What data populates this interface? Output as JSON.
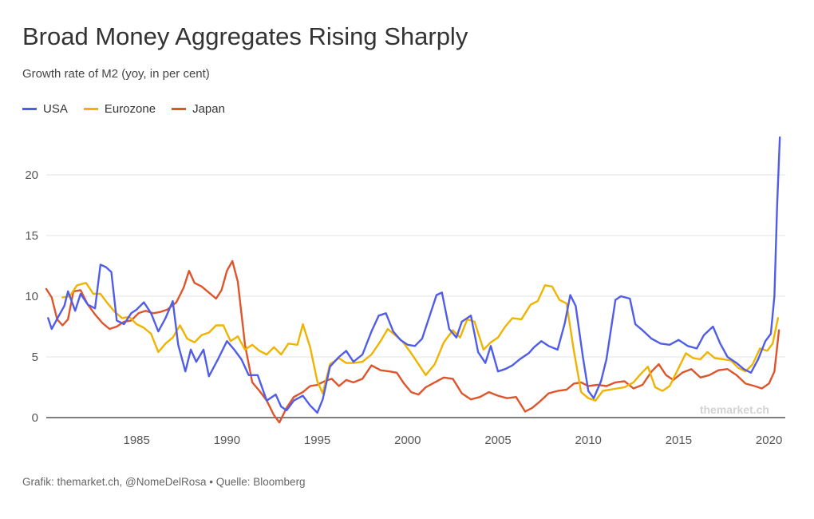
{
  "title": "Broad Money Aggregates Rising Sharply",
  "subtitle": "Growth rate of M2 (yoy, in per cent)",
  "source": "Grafik: themarket.ch, @NomeDelRosa • Quelle: Bloomberg",
  "watermark": "themarket.ch",
  "colors": {
    "USA": "#4f5de8",
    "Eurozone": "#f0b400",
    "Japan": "#e0542b"
  },
  "chart_data": {
    "type": "line",
    "title": "Broad Money Aggregates Rising Sharply",
    "subtitle": "Growth rate of M2 (yoy, in per cent)",
    "xlabel": "",
    "ylabel": "",
    "xlim": [
      1980,
      2020.9
    ],
    "ylim": [
      0,
      23
    ],
    "xticks": [
      1985,
      1990,
      1995,
      2000,
      2005,
      2010,
      2015,
      2020
    ],
    "yticks": [
      0,
      5,
      10,
      15,
      20
    ],
    "grid": true,
    "legend": "top-left",
    "series": [
      {
        "name": "USA",
        "color": "#4f5de8",
        "points": [
          [
            1980.1,
            8.2
          ],
          [
            1980.3,
            7.3
          ],
          [
            1980.7,
            8.4
          ],
          [
            1981.0,
            9.2
          ],
          [
            1981.2,
            10.4
          ],
          [
            1981.6,
            8.8
          ],
          [
            1981.9,
            10.2
          ],
          [
            1982.3,
            9.3
          ],
          [
            1982.7,
            9.0
          ],
          [
            1983.0,
            12.6
          ],
          [
            1983.3,
            12.4
          ],
          [
            1983.6,
            12.0
          ],
          [
            1983.9,
            8.0
          ],
          [
            1984.3,
            7.7
          ],
          [
            1984.7,
            8.6
          ],
          [
            1985.0,
            8.9
          ],
          [
            1985.4,
            9.5
          ],
          [
            1985.8,
            8.6
          ],
          [
            1986.2,
            7.1
          ],
          [
            1986.6,
            8.2
          ],
          [
            1987.0,
            9.6
          ],
          [
            1987.3,
            6.0
          ],
          [
            1987.7,
            3.8
          ],
          [
            1988.0,
            5.6
          ],
          [
            1988.3,
            4.6
          ],
          [
            1988.7,
            5.6
          ],
          [
            1989.0,
            3.4
          ],
          [
            1989.5,
            4.8
          ],
          [
            1990.0,
            6.3
          ],
          [
            1990.4,
            5.6
          ],
          [
            1990.8,
            4.8
          ],
          [
            1991.2,
            3.5
          ],
          [
            1991.7,
            3.5
          ],
          [
            1992.2,
            1.4
          ],
          [
            1992.7,
            1.9
          ],
          [
            1993.0,
            0.9
          ],
          [
            1993.3,
            0.6
          ],
          [
            1993.7,
            1.4
          ],
          [
            1994.2,
            1.8
          ],
          [
            1994.6,
            1.0
          ],
          [
            1995.0,
            0.4
          ],
          [
            1995.3,
            1.5
          ],
          [
            1995.7,
            4.2
          ],
          [
            1996.2,
            5.0
          ],
          [
            1996.6,
            5.5
          ],
          [
            1997.0,
            4.6
          ],
          [
            1997.5,
            5.2
          ],
          [
            1998.0,
            7.1
          ],
          [
            1998.4,
            8.4
          ],
          [
            1998.8,
            8.6
          ],
          [
            1999.2,
            7.1
          ],
          [
            1999.6,
            6.4
          ],
          [
            2000.0,
            6.0
          ],
          [
            2000.4,
            5.9
          ],
          [
            2000.8,
            6.5
          ],
          [
            2001.2,
            8.3
          ],
          [
            2001.6,
            10.1
          ],
          [
            2001.9,
            10.3
          ],
          [
            2002.3,
            7.3
          ],
          [
            2002.7,
            6.6
          ],
          [
            2003.0,
            7.9
          ],
          [
            2003.5,
            8.4
          ],
          [
            2003.9,
            5.4
          ],
          [
            2004.3,
            4.5
          ],
          [
            2004.6,
            5.9
          ],
          [
            2005.0,
            3.8
          ],
          [
            2005.4,
            4.0
          ],
          [
            2005.8,
            4.3
          ],
          [
            2006.2,
            4.8
          ],
          [
            2006.7,
            5.3
          ],
          [
            2007.0,
            5.8
          ],
          [
            2007.4,
            6.3
          ],
          [
            2007.8,
            5.9
          ],
          [
            2008.3,
            5.6
          ],
          [
            2008.7,
            7.8
          ],
          [
            2009.0,
            10.1
          ],
          [
            2009.3,
            9.2
          ],
          [
            2009.7,
            5.0
          ],
          [
            2010.0,
            2.2
          ],
          [
            2010.3,
            1.6
          ],
          [
            2010.7,
            3.0
          ],
          [
            2011.0,
            4.8
          ],
          [
            2011.5,
            9.7
          ],
          [
            2011.8,
            10.0
          ],
          [
            2012.3,
            9.8
          ],
          [
            2012.6,
            7.7
          ],
          [
            2013.0,
            7.2
          ],
          [
            2013.5,
            6.5
          ],
          [
            2014.0,
            6.1
          ],
          [
            2014.5,
            6.0
          ],
          [
            2015.0,
            6.4
          ],
          [
            2015.5,
            5.9
          ],
          [
            2016.0,
            5.7
          ],
          [
            2016.4,
            6.8
          ],
          [
            2016.9,
            7.5
          ],
          [
            2017.3,
            6.1
          ],
          [
            2017.7,
            5.0
          ],
          [
            2018.2,
            4.5
          ],
          [
            2018.6,
            4.0
          ],
          [
            2019.0,
            3.7
          ],
          [
            2019.4,
            4.8
          ],
          [
            2019.8,
            6.3
          ],
          [
            2020.1,
            6.9
          ],
          [
            2020.3,
            10.0
          ],
          [
            2020.45,
            17.5
          ],
          [
            2020.6,
            23.1
          ]
        ]
      },
      {
        "name": "Eurozone",
        "color": "#f0b400",
        "points": [
          [
            1980.9,
            9.9
          ],
          [
            1981.3,
            10.0
          ],
          [
            1981.7,
            10.9
          ],
          [
            1982.2,
            11.1
          ],
          [
            1982.6,
            10.2
          ],
          [
            1983.0,
            10.2
          ],
          [
            1983.4,
            9.4
          ],
          [
            1983.8,
            8.7
          ],
          [
            1984.2,
            8.2
          ],
          [
            1984.6,
            8.3
          ],
          [
            1985.0,
            7.7
          ],
          [
            1985.4,
            7.4
          ],
          [
            1985.8,
            6.9
          ],
          [
            1986.2,
            5.4
          ],
          [
            1986.6,
            6.1
          ],
          [
            1987.0,
            6.6
          ],
          [
            1987.4,
            7.6
          ],
          [
            1987.8,
            6.5
          ],
          [
            1988.2,
            6.2
          ],
          [
            1988.6,
            6.8
          ],
          [
            1989.0,
            7.0
          ],
          [
            1989.4,
            7.6
          ],
          [
            1989.8,
            7.6
          ],
          [
            1990.2,
            6.3
          ],
          [
            1990.6,
            6.7
          ],
          [
            1991.0,
            5.6
          ],
          [
            1991.4,
            6.0
          ],
          [
            1991.8,
            5.5
          ],
          [
            1992.2,
            5.2
          ],
          [
            1992.6,
            5.8
          ],
          [
            1993.0,
            5.2
          ],
          [
            1993.4,
            6.1
          ],
          [
            1993.9,
            6.0
          ],
          [
            1994.2,
            7.7
          ],
          [
            1994.6,
            5.8
          ],
          [
            1995.0,
            3.0
          ],
          [
            1995.3,
            2.0
          ],
          [
            1995.7,
            4.4
          ],
          [
            1996.2,
            4.9
          ],
          [
            1996.6,
            4.5
          ],
          [
            1997.0,
            4.5
          ],
          [
            1997.5,
            4.6
          ],
          [
            1998.0,
            5.2
          ],
          [
            1998.5,
            6.3
          ],
          [
            1998.9,
            7.3
          ],
          [
            1999.3,
            6.8
          ],
          [
            1999.7,
            6.3
          ],
          [
            2000.2,
            5.3
          ],
          [
            2000.6,
            4.4
          ],
          [
            2001.0,
            3.5
          ],
          [
            2001.5,
            4.4
          ],
          [
            2002.0,
            6.2
          ],
          [
            2002.5,
            7.2
          ],
          [
            2002.9,
            6.6
          ],
          [
            2003.3,
            8.1
          ],
          [
            2003.7,
            7.9
          ],
          [
            2004.2,
            5.6
          ],
          [
            2004.6,
            6.2
          ],
          [
            2005.0,
            6.6
          ],
          [
            2005.4,
            7.5
          ],
          [
            2005.8,
            8.2
          ],
          [
            2006.3,
            8.1
          ],
          [
            2006.8,
            9.3
          ],
          [
            2007.2,
            9.6
          ],
          [
            2007.6,
            10.9
          ],
          [
            2008.0,
            10.8
          ],
          [
            2008.4,
            9.7
          ],
          [
            2008.8,
            9.4
          ],
          [
            2009.2,
            5.5
          ],
          [
            2009.6,
            2.1
          ],
          [
            2010.0,
            1.6
          ],
          [
            2010.4,
            1.4
          ],
          [
            2010.8,
            2.2
          ],
          [
            2011.2,
            2.3
          ],
          [
            2011.6,
            2.4
          ],
          [
            2012.0,
            2.5
          ],
          [
            2012.5,
            2.9
          ],
          [
            2012.9,
            3.6
          ],
          [
            2013.3,
            4.2
          ],
          [
            2013.7,
            2.5
          ],
          [
            2014.1,
            2.2
          ],
          [
            2014.5,
            2.6
          ],
          [
            2014.9,
            3.8
          ],
          [
            2015.4,
            5.3
          ],
          [
            2015.8,
            4.9
          ],
          [
            2016.2,
            4.8
          ],
          [
            2016.6,
            5.4
          ],
          [
            2017.0,
            4.9
          ],
          [
            2017.5,
            4.8
          ],
          [
            2017.9,
            4.7
          ],
          [
            2018.3,
            4.1
          ],
          [
            2018.7,
            3.8
          ],
          [
            2019.1,
            4.4
          ],
          [
            2019.5,
            5.7
          ],
          [
            2019.9,
            5.5
          ],
          [
            2020.2,
            6.1
          ],
          [
            2020.5,
            8.2
          ]
        ]
      },
      {
        "name": "Japan",
        "color": "#e0542b",
        "points": [
          [
            1980.0,
            10.6
          ],
          [
            1980.3,
            9.9
          ],
          [
            1980.6,
            8.1
          ],
          [
            1980.9,
            7.6
          ],
          [
            1981.2,
            8.1
          ],
          [
            1981.5,
            10.4
          ],
          [
            1981.9,
            10.5
          ],
          [
            1982.3,
            9.3
          ],
          [
            1982.7,
            8.5
          ],
          [
            1983.1,
            7.8
          ],
          [
            1983.5,
            7.3
          ],
          [
            1983.9,
            7.5
          ],
          [
            1984.3,
            7.9
          ],
          [
            1984.7,
            8.0
          ],
          [
            1985.1,
            8.6
          ],
          [
            1985.5,
            8.8
          ],
          [
            1985.9,
            8.6
          ],
          [
            1986.3,
            8.7
          ],
          [
            1986.7,
            8.9
          ],
          [
            1987.2,
            9.5
          ],
          [
            1987.6,
            10.7
          ],
          [
            1987.9,
            12.1
          ],
          [
            1988.2,
            11.1
          ],
          [
            1988.6,
            10.8
          ],
          [
            1989.0,
            10.3
          ],
          [
            1989.4,
            9.8
          ],
          [
            1989.7,
            10.5
          ],
          [
            1990.0,
            12.1
          ],
          [
            1990.3,
            12.9
          ],
          [
            1990.6,
            11.2
          ],
          [
            1991.0,
            6.0
          ],
          [
            1991.4,
            2.9
          ],
          [
            1991.8,
            2.2
          ],
          [
            1992.2,
            1.4
          ],
          [
            1992.6,
            0.2
          ],
          [
            1992.9,
            -0.4
          ],
          [
            1993.3,
            0.8
          ],
          [
            1993.7,
            1.7
          ],
          [
            1994.2,
            2.1
          ],
          [
            1994.6,
            2.6
          ],
          [
            1995.0,
            2.7
          ],
          [
            1995.4,
            3.0
          ],
          [
            1995.8,
            3.2
          ],
          [
            1996.2,
            2.6
          ],
          [
            1996.6,
            3.1
          ],
          [
            1997.0,
            2.9
          ],
          [
            1997.5,
            3.2
          ],
          [
            1998.0,
            4.3
          ],
          [
            1998.5,
            3.9
          ],
          [
            1999.0,
            3.8
          ],
          [
            1999.4,
            3.7
          ],
          [
            1999.8,
            2.8
          ],
          [
            2000.2,
            2.1
          ],
          [
            2000.6,
            1.9
          ],
          [
            2001.0,
            2.5
          ],
          [
            2001.5,
            2.9
          ],
          [
            2002.0,
            3.3
          ],
          [
            2002.5,
            3.2
          ],
          [
            2003.0,
            2.0
          ],
          [
            2003.5,
            1.5
          ],
          [
            2004.0,
            1.7
          ],
          [
            2004.5,
            2.1
          ],
          [
            2005.0,
            1.8
          ],
          [
            2005.5,
            1.6
          ],
          [
            2006.0,
            1.7
          ],
          [
            2006.5,
            0.5
          ],
          [
            2006.9,
            0.8
          ],
          [
            2007.3,
            1.3
          ],
          [
            2007.8,
            2.0
          ],
          [
            2008.3,
            2.2
          ],
          [
            2008.8,
            2.3
          ],
          [
            2009.2,
            2.8
          ],
          [
            2009.6,
            2.9
          ],
          [
            2010.0,
            2.6
          ],
          [
            2010.5,
            2.7
          ],
          [
            2011.0,
            2.6
          ],
          [
            2011.5,
            2.9
          ],
          [
            2012.0,
            3.0
          ],
          [
            2012.5,
            2.4
          ],
          [
            2013.0,
            2.7
          ],
          [
            2013.5,
            3.8
          ],
          [
            2013.9,
            4.4
          ],
          [
            2014.3,
            3.5
          ],
          [
            2014.7,
            3.1
          ],
          [
            2015.2,
            3.7
          ],
          [
            2015.7,
            4.0
          ],
          [
            2016.2,
            3.3
          ],
          [
            2016.7,
            3.5
          ],
          [
            2017.2,
            3.9
          ],
          [
            2017.7,
            4.0
          ],
          [
            2018.2,
            3.5
          ],
          [
            2018.7,
            2.8
          ],
          [
            2019.2,
            2.6
          ],
          [
            2019.6,
            2.4
          ],
          [
            2020.0,
            2.8
          ],
          [
            2020.3,
            3.8
          ],
          [
            2020.55,
            7.2
          ]
        ]
      }
    ]
  }
}
